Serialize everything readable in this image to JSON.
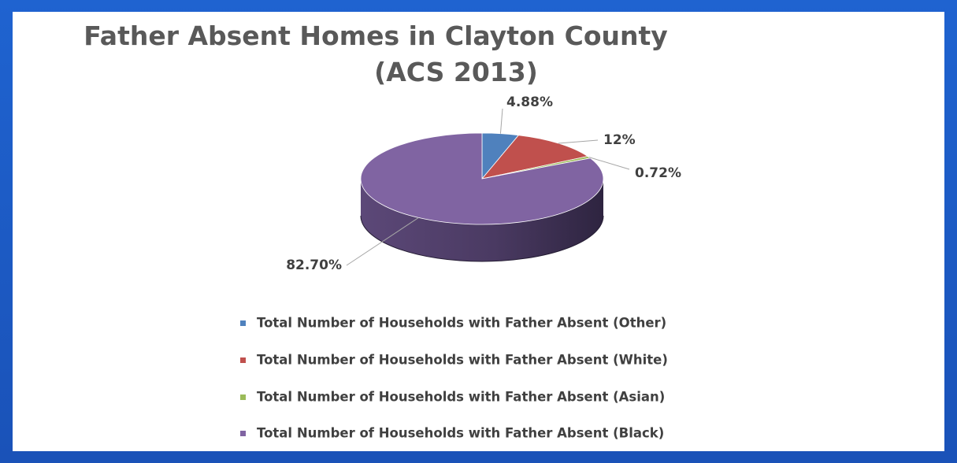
{
  "chart_data": {
    "type": "pie",
    "title_lines": [
      "Father Absent Homes in Clayton County",
      "(ACS 2013)"
    ],
    "slices": [
      {
        "name": "Total Number of Households with Father Absent (Other)",
        "value": 4.88,
        "label": "4.88%",
        "color": "#4f81bd"
      },
      {
        "name": "Total Number of Households with Father Absent (White)",
        "value": 12,
        "label": "12%",
        "color": "#c0504d"
      },
      {
        "name": "Total Number of Households with Father Absent (Asian)",
        "value": 0.72,
        "label": "0.72%",
        "color": "#9bbb59"
      },
      {
        "name": "Total Number of Households with Father Absent (Black)",
        "value": 82.7,
        "label": "82.70%",
        "color": "#8064a2"
      }
    ],
    "three_d": true,
    "legend_position": "bottom"
  }
}
